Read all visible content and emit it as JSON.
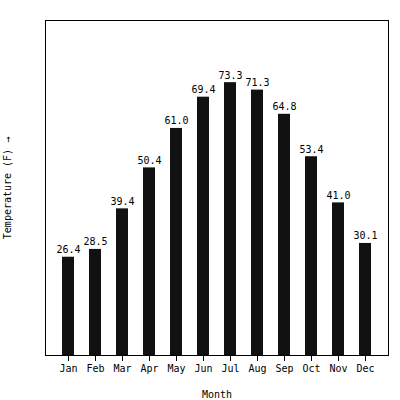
{
  "chart_data": {
    "type": "bar",
    "xlabel": "Month",
    "ylabel": "Temperature (F)",
    "categories": [
      "Jan",
      "Feb",
      "Mar",
      "Apr",
      "May",
      "Jun",
      "Jul",
      "Aug",
      "Sep",
      "Oct",
      "Nov",
      "Dec"
    ],
    "values": [
      26.4,
      28.5,
      39.4,
      50.4,
      61.0,
      69.4,
      73.3,
      71.3,
      64.8,
      53.4,
      41.0,
      30.1
    ],
    "value_labels": [
      "26.4",
      "28.5",
      "39.4",
      "50.4",
      "61.0",
      "69.4",
      "73.3",
      "71.3",
      "64.8",
      "53.4",
      "41.0",
      "30.1"
    ],
    "color": "#111111",
    "ylim": [
      0,
      90
    ],
    "yticks": [],
    "data_labels": true,
    "tick_labels": "x"
  }
}
